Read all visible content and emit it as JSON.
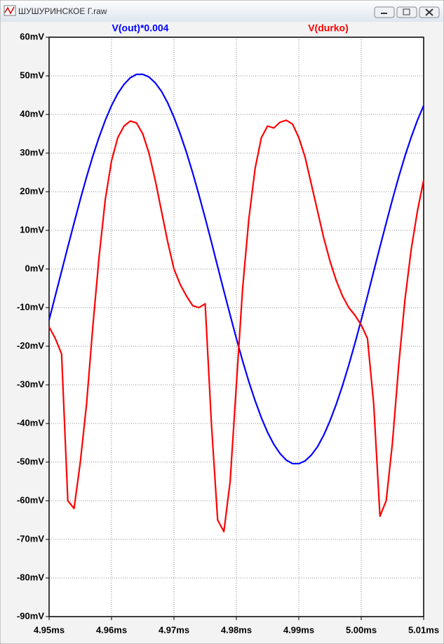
{
  "window_title": "ШУШУРИНСКОЕ Г.raw",
  "chart_data": {
    "type": "line",
    "x": [
      4.95,
      4.951,
      4.952,
      4.953,
      4.954,
      4.955,
      4.956,
      4.957,
      4.958,
      4.959,
      4.96,
      4.961,
      4.962,
      4.963,
      4.964,
      4.965,
      4.966,
      4.967,
      4.968,
      4.969,
      4.97,
      4.971,
      4.972,
      4.973,
      4.974,
      4.975,
      4.976,
      4.977,
      4.978,
      4.979,
      4.98,
      4.981,
      4.982,
      4.983,
      4.984,
      4.985,
      4.986,
      4.987,
      4.988,
      4.989,
      4.99,
      4.991,
      4.992,
      4.993,
      4.994,
      4.995,
      4.996,
      4.997,
      4.998,
      4.999,
      5.0,
      5.001,
      5.002,
      5.003,
      5.004,
      5.005,
      5.006,
      5.007,
      5.008,
      5.009,
      5.01
    ],
    "series": [
      {
        "name": "V(out)*0.004",
        "color": "#0000ff",
        "values": [
          -13.2,
          -6.9,
          -0.6,
          5.7,
          11.9,
          18.0,
          23.8,
          29.2,
          34.1,
          38.5,
          42.3,
          45.4,
          47.8,
          49.5,
          50.4,
          50.4,
          49.7,
          48.2,
          46.0,
          43.0,
          39.3,
          35.0,
          30.2,
          24.9,
          19.2,
          13.2,
          7.0,
          0.6,
          -5.7,
          -11.9,
          -18.0,
          -23.8,
          -29.2,
          -34.1,
          -38.5,
          -42.3,
          -45.4,
          -47.8,
          -49.5,
          -50.4,
          -50.4,
          -49.7,
          -48.2,
          -46.0,
          -43.0,
          -39.3,
          -35.0,
          -30.2,
          -24.9,
          -19.2,
          -13.2,
          -7.0,
          -0.6,
          5.7,
          11.9,
          18.0,
          23.8,
          29.2,
          34.1,
          38.5,
          42.3
        ]
      },
      {
        "name": "V(durko)",
        "color": "#ff0000",
        "values": [
          -15,
          -18,
          -22,
          -60,
          -62,
          -50,
          -35,
          -15,
          3,
          18,
          28,
          34,
          37,
          38.3,
          37.8,
          35,
          30,
          23,
          15,
          7,
          0,
          -4,
          -7,
          -9.5,
          -10,
          -9,
          -40,
          -65,
          -68,
          -55,
          -30,
          -5,
          13,
          26,
          34,
          37,
          36.5,
          38,
          38.5,
          37.5,
          34,
          29,
          22,
          15,
          8,
          2,
          -3,
          -7,
          -10,
          -12,
          -14.5,
          -18,
          -35,
          -64,
          -60,
          -45,
          -25,
          -8,
          5,
          15,
          23
        ]
      }
    ],
    "xlim": [
      4.95,
      5.01
    ],
    "ylim": [
      -90,
      60
    ],
    "xticks": [
      {
        "value": 4.95,
        "label": "4.95ms"
      },
      {
        "value": 4.96,
        "label": "4.96ms"
      },
      {
        "value": 4.97,
        "label": "4.97ms"
      },
      {
        "value": 4.98,
        "label": "4.98ms"
      },
      {
        "value": 4.99,
        "label": "4.99ms"
      },
      {
        "value": 5.0,
        "label": "5.00ms"
      },
      {
        "value": 5.01,
        "label": "5.01ms"
      }
    ],
    "yticks": [
      {
        "value": 60,
        "label": "60mV"
      },
      {
        "value": 50,
        "label": "50mV"
      },
      {
        "value": 40,
        "label": "40mV"
      },
      {
        "value": 30,
        "label": "30mV"
      },
      {
        "value": 20,
        "label": "20mV"
      },
      {
        "value": 10,
        "label": "10mV"
      },
      {
        "value": 0,
        "label": "0mV"
      },
      {
        "value": -10,
        "label": "-10mV"
      },
      {
        "value": -20,
        "label": "-20mV"
      },
      {
        "value": -30,
        "label": "-30mV"
      },
      {
        "value": -40,
        "label": "-40mV"
      },
      {
        "value": -50,
        "label": "-50mV"
      },
      {
        "value": -60,
        "label": "-60mV"
      },
      {
        "value": -70,
        "label": "-70mV"
      },
      {
        "value": -80,
        "label": "-80mV"
      },
      {
        "value": -90,
        "label": "-90mV"
      }
    ],
    "grid": true
  }
}
